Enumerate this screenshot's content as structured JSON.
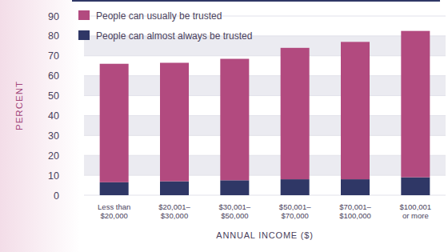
{
  "chart_data": {
    "type": "bar",
    "stacked": true,
    "x_label": "ANNUAL INCOME ($)",
    "y_label": "PERCENT",
    "categories": [
      "Less than\n$20,000",
      "$20,001–\n$30,000",
      "$30,001–\n$50,000",
      "$50,001–\n$70,000",
      "$70,001–\n$100,000",
      "$100,001\nor more"
    ],
    "series": [
      {
        "name": "People can almost always be trusted",
        "color": "#2f3766",
        "values": [
          6.5,
          7,
          7.5,
          8,
          8,
          9
        ]
      },
      {
        "name": "People can usually be trusted",
        "color": "#b24a7f",
        "values": [
          59.5,
          59.5,
          61,
          66,
          69,
          73.5
        ]
      }
    ],
    "ylim": [
      0,
      90
    ],
    "yticks": [
      0,
      10,
      20,
      30,
      40,
      50,
      60,
      70,
      80,
      90
    ],
    "grid": true,
    "legend": "top-left"
  }
}
